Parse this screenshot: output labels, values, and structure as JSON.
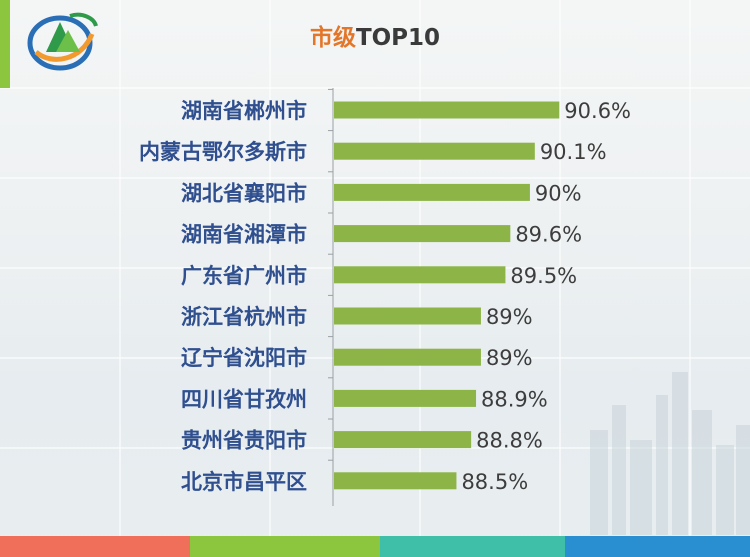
{
  "title": {
    "part1": "市级",
    "part2": "TOP10"
  },
  "colors": {
    "bar": "#8cb447",
    "label": "#2f4f8f",
    "value": "#3d3d3d",
    "title_accent": "#e4762a",
    "footer": [
      "#ef6f5a",
      "#8cc63e",
      "#40bfa8",
      "#2a8fd0"
    ]
  },
  "chart_data": {
    "type": "bar",
    "orientation": "horizontal",
    "title": "市级TOP10",
    "categories": [
      "湖南省郴州市",
      "内蒙古鄂尔多斯市",
      "湖北省襄阳市",
      "湖南省湘潭市",
      "广东省广州市",
      "浙江省杭州市",
      "辽宁省沈阳市",
      "四川省甘孜州",
      "贵州省贵阳市",
      "北京市昌平区"
    ],
    "values": [
      90.6,
      90.1,
      90,
      89.6,
      89.5,
      89,
      89,
      88.9,
      88.8,
      88.5
    ],
    "value_labels": [
      "90.6%",
      "90.1%",
      "90%",
      "89.6%",
      "89.5%",
      "89%",
      "89%",
      "88.9%",
      "88.8%",
      "88.5%"
    ],
    "unit": "%",
    "xlim": [
      86.0,
      90.9
    ],
    "grid": false,
    "legend": "none"
  }
}
